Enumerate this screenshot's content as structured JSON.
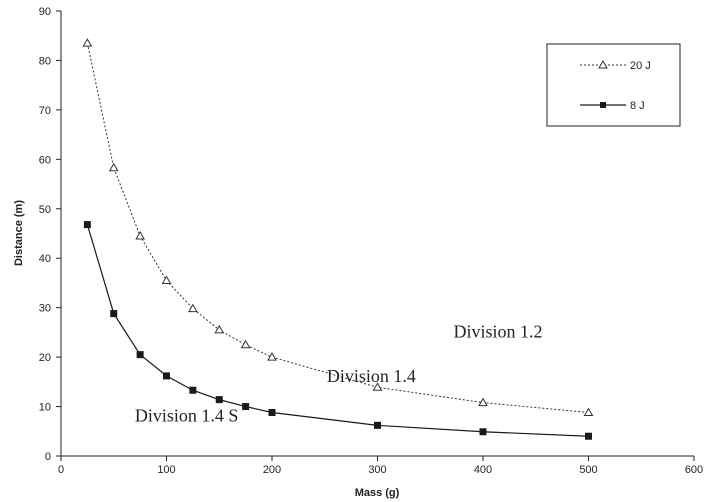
{
  "chart_data": {
    "type": "line",
    "title": "",
    "xlabel": "Mass (g)",
    "ylabel": "Distance (m)",
    "xlim": [
      0,
      600
    ],
    "ylim": [
      0,
      90
    ],
    "xticks": [
      0,
      100,
      200,
      300,
      400,
      500,
      600
    ],
    "yticks": [
      0,
      10,
      20,
      30,
      40,
      50,
      60,
      70,
      80,
      90
    ],
    "grid": false,
    "legend_position": "top-right",
    "series": [
      {
        "name": "20 J",
        "style": "dotted",
        "marker": "open-triangle",
        "color": "#333333",
        "x": [
          25,
          50,
          75,
          100,
          125,
          150,
          175,
          200,
          300,
          400,
          500
        ],
        "y": [
          83.5,
          58.3,
          44.5,
          35.5,
          29.8,
          25.5,
          22.5,
          20.0,
          13.9,
          10.8,
          8.8
        ]
      },
      {
        "name": "8 J",
        "style": "solid",
        "marker": "filled-square",
        "color": "#1a1a1a",
        "x": [
          25,
          50,
          75,
          100,
          125,
          150,
          175,
          200,
          300,
          400,
          500
        ],
        "y": [
          46.8,
          28.8,
          20.5,
          16.2,
          13.3,
          11.4,
          10.0,
          8.8,
          6.2,
          4.9,
          4.0
        ]
      }
    ],
    "annotations": [
      {
        "text": "Division 1.2",
        "x": 372,
        "y": 24
      },
      {
        "text": "Division 1.4",
        "x": 252,
        "y": 15
      },
      {
        "text": "Division 1.4 S",
        "x": 70,
        "y": 7
      }
    ]
  }
}
